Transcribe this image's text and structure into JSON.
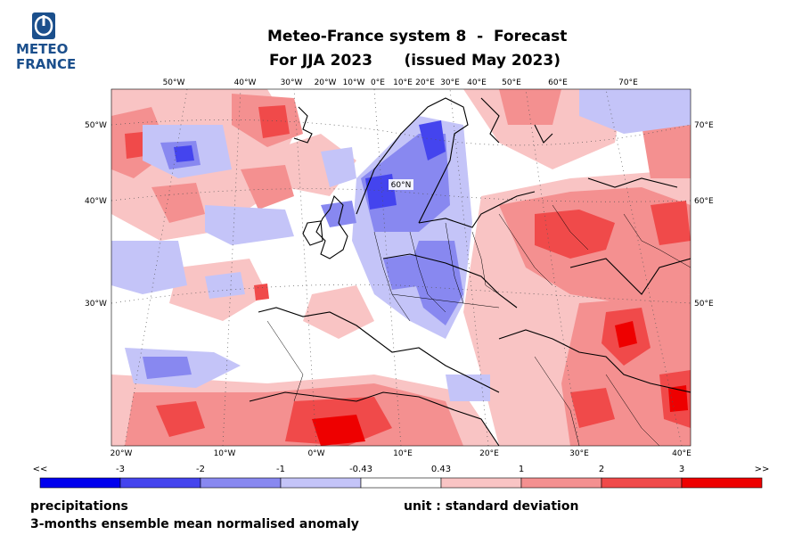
{
  "logo": {
    "line1": "METEO",
    "line2": "FRANCE",
    "color": "#1b4f8c"
  },
  "header": {
    "title_line1": "Meteo-France system 8  -  Forecast",
    "title_line2": "For JJA 2023      (issued May 2023)"
  },
  "map": {
    "top_labels": [
      "50°W",
      "40°W",
      "30°W",
      "20°W",
      "10°W",
      "0°E",
      "10°E",
      "20°E",
      "30°E",
      "40°E",
      "50°E",
      "60°E",
      "70°E"
    ],
    "bottom_labels": [
      "20°W",
      "10°W",
      "0°W",
      "10°E",
      "20°E",
      "30°E",
      "40°E"
    ],
    "left_labels": [
      "50°W",
      "40°W",
      "30°W"
    ],
    "right_labels": [
      "70°E",
      "60°E",
      "50°E"
    ],
    "inner_label": "60°N",
    "anomaly_palette": {
      "strong_negative": "#0000ee",
      "negative_2": "#4444ee",
      "negative_1": "#8888f0",
      "negative_weak": "#c4c4f8",
      "neutral": "#ffffff",
      "positive_weak": "#f9c4c4",
      "positive_1": "#f49090",
      "positive_2": "#f04a4a",
      "strong_positive": "#ee0000"
    }
  },
  "colorbar": {
    "labels": [
      "<<",
      "-3",
      "-2",
      "-1",
      "-0.43",
      "0.43",
      "1",
      "2",
      "3",
      ">>"
    ],
    "colors": [
      "#0000ee",
      "#4444ee",
      "#8888f0",
      "#c4c4f8",
      "#ffffff",
      "#f9c4c4",
      "#f49090",
      "#f04a4a",
      "#ee0000"
    ]
  },
  "footer": {
    "variable": "precipitations",
    "description": "3-months ensemble mean normalised anomaly",
    "unit": "unit : standard deviation"
  }
}
